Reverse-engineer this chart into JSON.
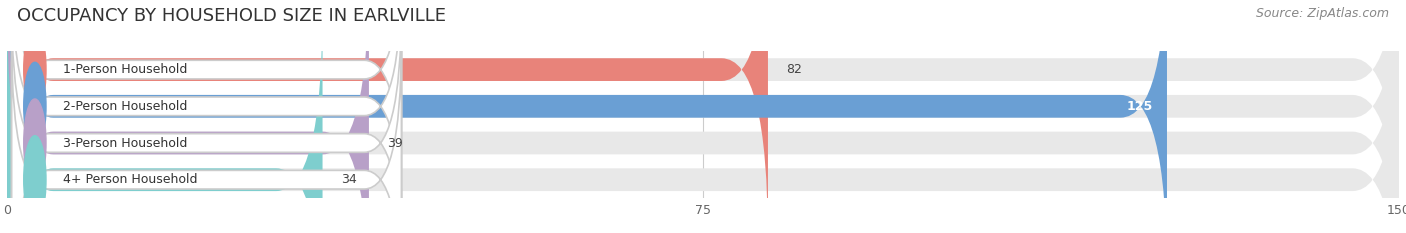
{
  "title": "OCCUPANCY BY HOUSEHOLD SIZE IN EARLVILLE",
  "source": "Source: ZipAtlas.com",
  "categories": [
    "1-Person Household",
    "2-Person Household",
    "3-Person Household",
    "4+ Person Household"
  ],
  "values": [
    82,
    125,
    39,
    34
  ],
  "bar_colors": [
    "#E8837A",
    "#6A9FD4",
    "#B8A0C8",
    "#7ECECE"
  ],
  "xlim": [
    0,
    150
  ],
  "xticks": [
    0,
    75,
    150
  ],
  "label_inside": [
    false,
    true,
    false,
    false
  ],
  "background_color": "#ffffff",
  "bar_background": "#e8e8e8",
  "title_fontsize": 13,
  "source_fontsize": 9,
  "value_fontsize": 9,
  "category_fontsize": 9
}
